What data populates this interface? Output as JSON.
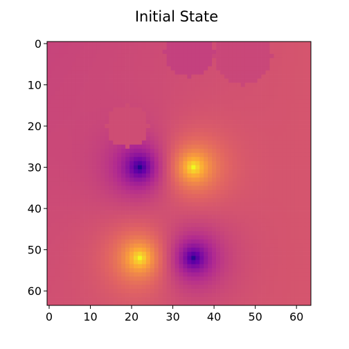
{
  "chart_data": {
    "type": "heatmap",
    "title": "Initial State",
    "xlabel": "",
    "ylabel": "",
    "grid_size": 64,
    "xlim": [
      -0.5,
      63.5
    ],
    "ylim": [
      63.5,
      -0.5
    ],
    "x_ticks": [
      0,
      10,
      20,
      30,
      40,
      50,
      60
    ],
    "y_ticks": [
      0,
      10,
      20,
      30,
      40,
      50,
      60
    ],
    "colormap": "plasma",
    "colormap_stops": [
      "#0d0887",
      "#6a00a8",
      "#b12a90",
      "#e16462",
      "#fca636",
      "#f0f921"
    ],
    "background_value": 0.52,
    "sources": [
      {
        "x": 22,
        "y": 30,
        "sign": -1,
        "label": "dark spot"
      },
      {
        "x": 35,
        "y": 30,
        "sign": 1,
        "label": "bright spot"
      },
      {
        "x": 22,
        "y": 52,
        "sign": 1,
        "label": "bright spot"
      },
      {
        "x": 35,
        "y": 52,
        "sign": -1,
        "label": "dark spot"
      }
    ],
    "disc_patches": [
      {
        "cx": 19,
        "cy": 20,
        "r": 5,
        "value": 0.52
      },
      {
        "cx": 47,
        "cy": 3,
        "r": 7,
        "value": 0.5
      },
      {
        "cx": 34,
        "cy": 2,
        "r": 6,
        "value": 0.48
      }
    ],
    "grid": false
  }
}
